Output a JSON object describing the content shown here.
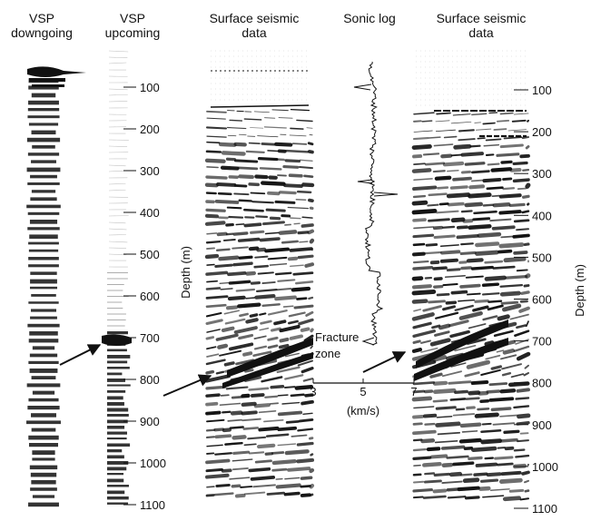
{
  "headers": {
    "vsp_down": [
      "VSP",
      "downgoing"
    ],
    "vsp_up": [
      "VSP",
      "upcoming"
    ],
    "surface_left": [
      "Surface seismic",
      "data"
    ],
    "sonic": [
      "Sonic log"
    ],
    "surface_right": [
      "Surface seismic",
      "data"
    ]
  },
  "depth_axis": {
    "label": "Depth (m)",
    "ticks": [
      "100",
      "200",
      "300",
      "400",
      "500",
      "600",
      "700",
      "800",
      "900",
      "1000",
      "1100"
    ]
  },
  "sonic_axis": {
    "ticks": [
      "3",
      "5",
      "7"
    ],
    "unit": "(km/s)"
  },
  "annotation": {
    "fracture_zone": [
      "Fracture",
      "zone"
    ]
  },
  "colors": {
    "ink": "#111111",
    "background": "#ffffff"
  }
}
